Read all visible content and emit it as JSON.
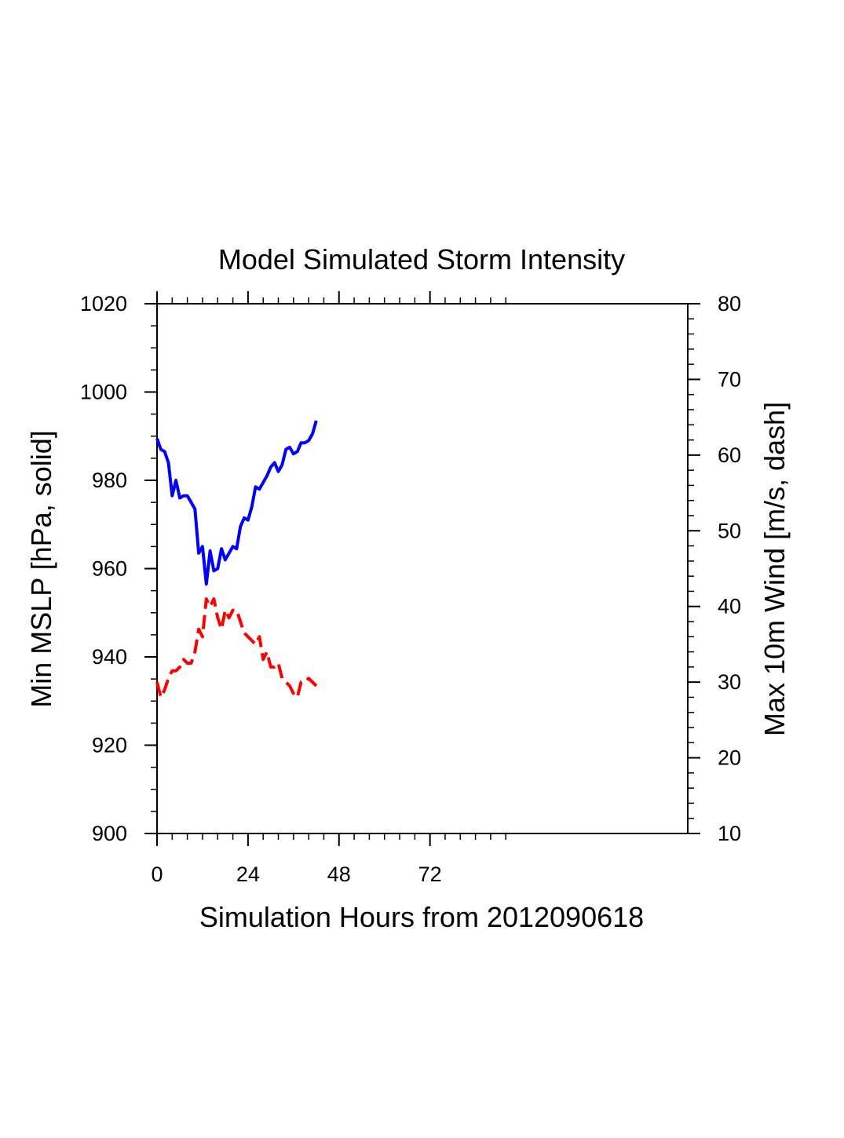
{
  "chart_data": {
    "type": "line",
    "title": "Model Simulated Storm Intensity",
    "xlabel": "Simulation Hours from 2012090618",
    "ylabel_left": "Min MSLP  [hPa, solid]",
    "ylabel_right": "Max 10m Wind  [m/s, dash]",
    "xlim": [
      0,
      140
    ],
    "ylim_left": [
      900,
      1020
    ],
    "ylim_right": [
      10,
      80
    ],
    "x_ticks": [
      0,
      24,
      48,
      72
    ],
    "x_tick_labels": [
      "0",
      "24",
      "48",
      "72"
    ],
    "y_left_ticks": [
      900,
      920,
      940,
      960,
      980,
      1000,
      1020
    ],
    "y_left_tick_labels": [
      "900",
      "920",
      "940",
      "960",
      "980",
      "1000",
      "1020"
    ],
    "y_right_ticks": [
      10,
      20,
      30,
      40,
      50,
      60,
      70,
      80
    ],
    "y_right_tick_labels": [
      "10",
      "20",
      "30",
      "40",
      "50",
      "60",
      "70",
      "80"
    ],
    "grid": false,
    "series": [
      {
        "axis": "left",
        "style": "solid",
        "color": "#0000ff",
        "x": [
          0,
          1,
          2,
          3,
          4,
          5,
          6,
          7,
          8,
          9,
          10,
          11,
          12,
          13,
          14,
          15,
          16,
          17,
          18,
          19,
          20,
          21,
          22,
          23,
          24,
          25,
          26,
          27,
          28,
          29,
          30,
          31,
          32,
          33,
          34,
          35,
          36,
          37,
          38,
          39,
          40,
          41,
          42
        ],
        "values": [
          989.5,
          987,
          986.5,
          984,
          976.5,
          980,
          976,
          976.5,
          976.5,
          975,
          973.5,
          963.5,
          965,
          956.5,
          964,
          959.5,
          960,
          964.5,
          962,
          963.5,
          965,
          964.5,
          969.5,
          971.5,
          971,
          974,
          978.5,
          978,
          979.5,
          981,
          983,
          984,
          982,
          983.5,
          987,
          987.5,
          986,
          986.5,
          988.5,
          988.5,
          989,
          990.5,
          993.5
        ]
      },
      {
        "axis": "right",
        "style": "dash",
        "color": "#ff0000",
        "x": [
          0,
          1,
          2,
          3,
          4,
          5,
          6,
          7,
          8,
          9,
          10,
          11,
          12,
          13,
          14,
          15,
          16,
          17,
          18,
          19,
          20,
          21,
          22,
          23,
          24,
          25,
          26,
          27,
          28,
          29,
          30,
          31,
          32,
          33,
          34,
          35,
          36,
          37,
          38,
          39,
          40,
          41,
          42
        ],
        "values": [
          30,
          28,
          29,
          30.5,
          31.5,
          31.5,
          32,
          33,
          32.5,
          32.5,
          34,
          37,
          36,
          41,
          40,
          41,
          38.5,
          37,
          39.5,
          38.5,
          39.5,
          39.5,
          38,
          36.5,
          36,
          35.5,
          35,
          36,
          33,
          34,
          32,
          32,
          32.5,
          30.5,
          30,
          29.5,
          28.5,
          28,
          30,
          30,
          30.5,
          30,
          29.5
        ]
      }
    ]
  }
}
